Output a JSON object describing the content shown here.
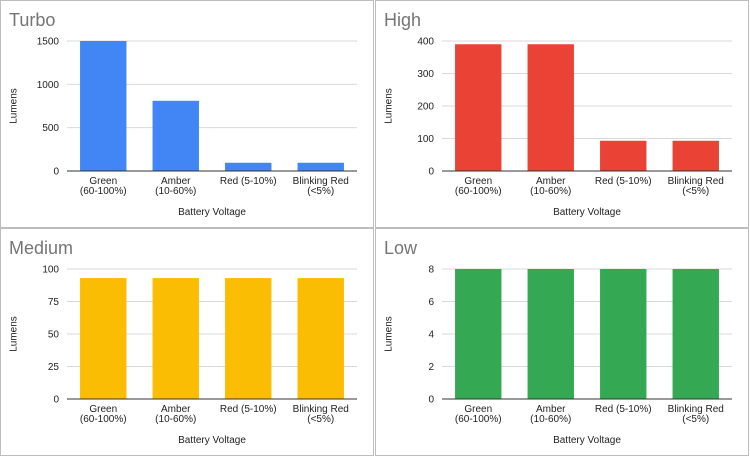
{
  "chart_data": [
    {
      "type": "bar",
      "title": "Turbo",
      "categories": [
        [
          "Green",
          "(60-100%)"
        ],
        [
          "Amber",
          "(10-60%)"
        ],
        [
          "Red (5-10%)"
        ],
        [
          "Blinking Red",
          "(<5%)"
        ]
      ],
      "values": [
        1500,
        810,
        95,
        95
      ],
      "ylim": [
        0,
        1500
      ],
      "yticks": [
        0,
        500,
        1000,
        1500
      ],
      "xlabel": "Battery Voltage",
      "ylabel": "Lumens",
      "color": "#4285f4",
      "grid": true
    },
    {
      "type": "bar",
      "title": "High",
      "categories": [
        [
          "Green",
          "(60-100%)"
        ],
        [
          "Amber",
          "(10-60%)"
        ],
        [
          "Red (5-10%)"
        ],
        [
          "Blinking Red",
          "(<5%)"
        ]
      ],
      "values": [
        390,
        390,
        93,
        93
      ],
      "ylim": [
        0,
        400
      ],
      "yticks": [
        0,
        100,
        200,
        300,
        400
      ],
      "xlabel": "Battery Voltage",
      "ylabel": "Lumens",
      "color": "#ea4335",
      "grid": true
    },
    {
      "type": "bar",
      "title": "Medium",
      "categories": [
        [
          "Green",
          "(60-100%)"
        ],
        [
          "Amber",
          "(10-60%)"
        ],
        [
          "Red (5-10%)"
        ],
        [
          "Blinking Red",
          "(<5%)"
        ]
      ],
      "values": [
        93,
        93,
        93,
        93
      ],
      "ylim": [
        0,
        100
      ],
      "yticks": [
        0,
        25,
        50,
        75,
        100
      ],
      "xlabel": "Battery Voltage",
      "ylabel": "Lumens",
      "color": "#fbbc04",
      "grid": true
    },
    {
      "type": "bar",
      "title": "Low",
      "categories": [
        [
          "Green",
          "(60-100%)"
        ],
        [
          "Amber",
          "(10-60%)"
        ],
        [
          "Red (5-10%)"
        ],
        [
          "Blinking Red",
          "(<5%)"
        ]
      ],
      "values": [
        8,
        8,
        8,
        8
      ],
      "ylim": [
        0,
        8
      ],
      "yticks": [
        0,
        2,
        4,
        6,
        8
      ],
      "xlabel": "Battery Voltage",
      "ylabel": "Lumens",
      "color": "#34a853",
      "grid": true
    }
  ]
}
